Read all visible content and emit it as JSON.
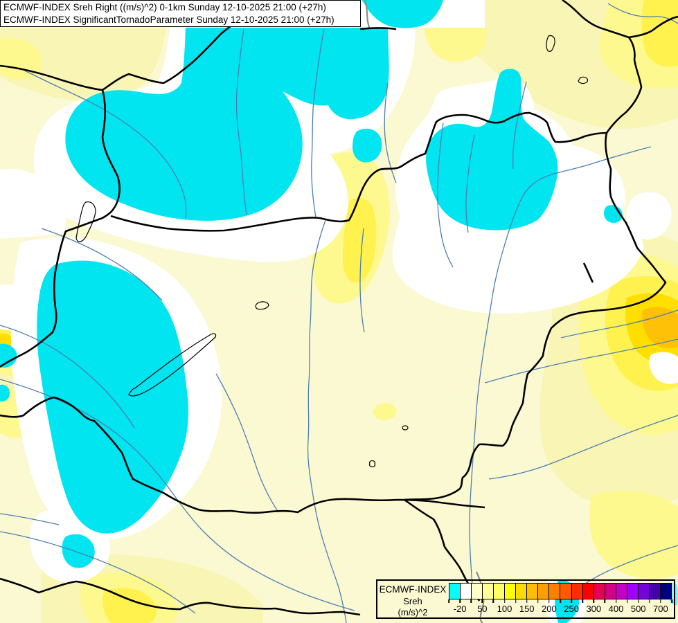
{
  "title": {
    "line1": "ECMWF-INDEX Sreh Right ((m/s)^2) 0-1km Sunday 12-10-2025 21:00 (+27h)",
    "line2": "ECMWF-INDEX SignificantTornadoParameter Sunday 12-10-2025 21:00 (+27h)"
  },
  "legend": {
    "name": "ECMWF-INDEX",
    "parameter": "Sreh",
    "units": "(m/s)^2",
    "cells": [
      "#00FFFF",
      "#FFFFFF",
      "#FFFFC8",
      "#FFFF96",
      "#FFFF64",
      "#FFFF00",
      "#FFDC00",
      "#FFBE00",
      "#FF9E00",
      "#FF7F00",
      "#FF5A00",
      "#FF2D00",
      "#FF0000",
      "#E80053",
      "#D40087",
      "#C400C4",
      "#A000FF",
      "#7800DC",
      "#4600AA",
      "#000080"
    ],
    "tick_labels": [
      "-20",
      "50",
      "100",
      "150",
      "200",
      "250",
      "300",
      "400",
      "500",
      "700"
    ]
  },
  "map": {
    "region": "Hungary and surrounding countries",
    "colors": {
      "background": "#FBF9D2",
      "negative_sreh": "#00E5EF",
      "negative_sreh_light": "#8FEFF2",
      "white_zone": "#FFFFFF",
      "yellow_1": "#F9F5B5",
      "yellow_2": "#FDF98E",
      "yellow_3": "#FFF24E",
      "yellow_4": "#FFDE00",
      "orange_core": "#FFC107",
      "river": "#4D7EB3",
      "border": "#000000",
      "gray_line": "#8C8C8C"
    }
  }
}
